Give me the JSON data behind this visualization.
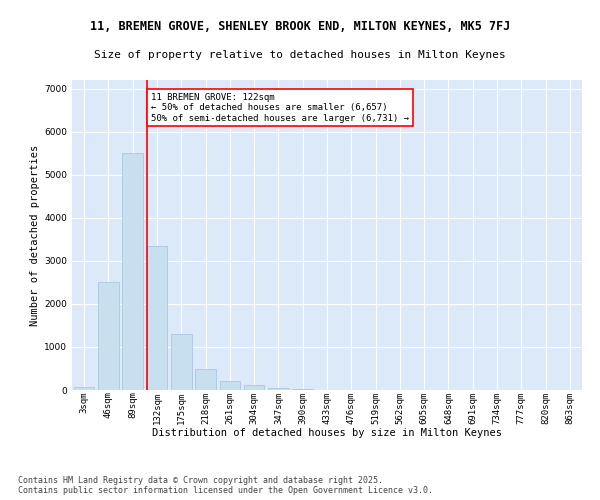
{
  "title1": "11, BREMEN GROVE, SHENLEY BROOK END, MILTON KEYNES, MK5 7FJ",
  "title2": "Size of property relative to detached houses in Milton Keynes",
  "xlabel": "Distribution of detached houses by size in Milton Keynes",
  "ylabel": "Number of detached properties",
  "categories": [
    "3sqm",
    "46sqm",
    "89sqm",
    "132sqm",
    "175sqm",
    "218sqm",
    "261sqm",
    "304sqm",
    "347sqm",
    "390sqm",
    "433sqm",
    "476sqm",
    "519sqm",
    "562sqm",
    "605sqm",
    "648sqm",
    "691sqm",
    "734sqm",
    "777sqm",
    "820sqm",
    "863sqm"
  ],
  "values": [
    80,
    2510,
    5500,
    3340,
    1300,
    480,
    220,
    110,
    55,
    30,
    0,
    0,
    0,
    0,
    0,
    0,
    0,
    0,
    0,
    0,
    0
  ],
  "bar_color": "#c8dff0",
  "bar_edge_color": "#a0c4e0",
  "vline_color": "red",
  "vline_pos": 2.6,
  "annotation_title": "11 BREMEN GROVE: 122sqm",
  "annotation_line1": "← 50% of detached houses are smaller (6,657)",
  "annotation_line2": "50% of semi-detached houses are larger (6,731) →",
  "annotation_box_color": "red",
  "ylim": [
    0,
    7200
  ],
  "yticks": [
    0,
    1000,
    2000,
    3000,
    4000,
    5000,
    6000,
    7000
  ],
  "background_color": "#dce9f8",
  "grid_color": "white",
  "footer1": "Contains HM Land Registry data © Crown copyright and database right 2025.",
  "footer2": "Contains public sector information licensed under the Open Government Licence v3.0.",
  "title1_fontsize": 8.5,
  "title2_fontsize": 8,
  "axis_label_fontsize": 7.5,
  "tick_fontsize": 6.5,
  "footer_fontsize": 6,
  "annot_fontsize": 6.5
}
